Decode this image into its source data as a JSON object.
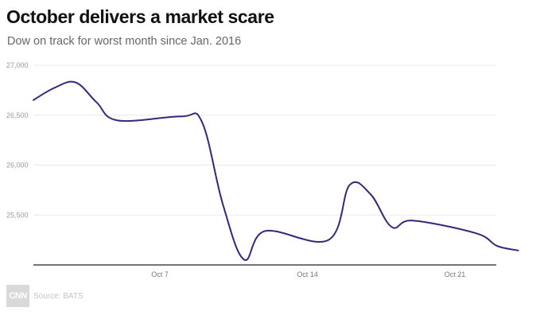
{
  "header": {
    "title": "October delivers a market scare",
    "subtitle": "Dow on track for worst month since Jan. 2016"
  },
  "footer": {
    "logo_text": "CNN",
    "source": "Source: BATS"
  },
  "colors": {
    "line": "#2e2a7e",
    "grid": "#e8e8e8",
    "axis": "#222222"
  },
  "chart_data": {
    "type": "line",
    "title": "October delivers a market scare",
    "subtitle": "Dow on track for worst month since Jan. 2016",
    "xlabel": "",
    "ylabel": "",
    "x_tick_labels": [
      "Oct 7",
      "Oct 14",
      "Oct 21"
    ],
    "y_tick_labels": [
      "27,000",
      "26,500",
      "26,000",
      "25,500"
    ],
    "y_ticks": [
      27000,
      26500,
      26000,
      25500
    ],
    "ylim": [
      25000,
      27000
    ],
    "grid": true,
    "legend": "none",
    "series": [
      {
        "x": [
          "Oct 1",
          "Oct 2",
          "Oct 3",
          "Oct 4",
          "Oct 5",
          "Oct 8",
          "Oct 9",
          "Oct 10",
          "Oct 11",
          "Oct 12",
          "Oct 15",
          "Oct 16",
          "Oct 17",
          "Oct 18",
          "Oct 19",
          "Oct 22",
          "Oct 23",
          "Oct 24"
        ],
        "values": [
          26651,
          26774,
          26828,
          26628,
          26447,
          26487,
          26431,
          25599,
          25053,
          25340,
          25250,
          25799,
          25707,
          25380,
          25444,
          25317,
          25191,
          25145
        ]
      }
    ],
    "x_tick_positions": [
      "Oct 7",
      "Oct 14",
      "Oct 21"
    ]
  },
  "source": "Source: BATS"
}
